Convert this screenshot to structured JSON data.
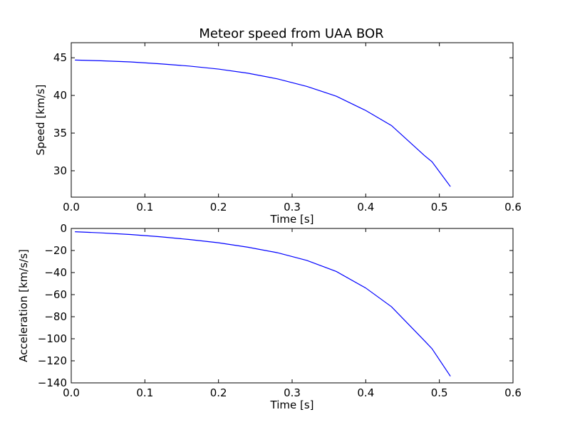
{
  "figure": {
    "title": "Meteor speed from  UAA BOR",
    "line_color": "#0000ff",
    "frame_color": "#000000",
    "background": "#ffffff"
  },
  "chart_data": [
    {
      "type": "line",
      "title": "Meteor speed from  UAA BOR",
      "xlabel": "Time [s]",
      "ylabel": "Speed [km/s]",
      "xlim": [
        0.0,
        0.6
      ],
      "ylim": [
        26.5,
        47.0
      ],
      "xticks": [
        0.0,
        0.1,
        0.2,
        0.3,
        0.4,
        0.5,
        0.6
      ],
      "xtick_labels": [
        "0.0",
        "0.1",
        "0.2",
        "0.3",
        "0.4",
        "0.5",
        "0.6"
      ],
      "yticks": [
        30,
        35,
        40,
        45
      ],
      "ytick_labels": [
        "30",
        "35",
        "40",
        "45"
      ],
      "grid": false,
      "series": [
        {
          "x": [
            0.005,
            0.04,
            0.08,
            0.12,
            0.16,
            0.2,
            0.24,
            0.28,
            0.32,
            0.36,
            0.4,
            0.435,
            0.48,
            0.49,
            0.515
          ],
          "y": [
            44.7,
            44.6,
            44.45,
            44.2,
            43.9,
            43.5,
            42.95,
            42.2,
            41.2,
            39.9,
            38.0,
            36.0,
            32.0,
            31.2,
            27.9
          ]
        }
      ]
    },
    {
      "type": "line",
      "title": "",
      "xlabel": "Time [s]",
      "ylabel": "Acceleration [km/s/s]",
      "xlim": [
        0.0,
        0.6
      ],
      "ylim": [
        -140,
        0
      ],
      "xticks": [
        0.0,
        0.1,
        0.2,
        0.3,
        0.4,
        0.5,
        0.6
      ],
      "xtick_labels": [
        "0.0",
        "0.1",
        "0.2",
        "0.3",
        "0.4",
        "0.5",
        "0.6"
      ],
      "yticks": [
        -140,
        -120,
        -100,
        -80,
        -60,
        -40,
        -20,
        0
      ],
      "ytick_labels": [
        "−140",
        "−120",
        "−100",
        "−80",
        "−60",
        "−40",
        "−20",
        "0"
      ],
      "grid": false,
      "series": [
        {
          "x": [
            0.005,
            0.04,
            0.08,
            0.12,
            0.16,
            0.2,
            0.24,
            0.28,
            0.32,
            0.36,
            0.4,
            0.435,
            0.48,
            0.49,
            0.515
          ],
          "y": [
            -3,
            -4,
            -5.5,
            -7.5,
            -10,
            -13,
            -17,
            -22,
            -29,
            -39,
            -54,
            -71,
            -102,
            -109,
            -134
          ]
        }
      ]
    }
  ]
}
